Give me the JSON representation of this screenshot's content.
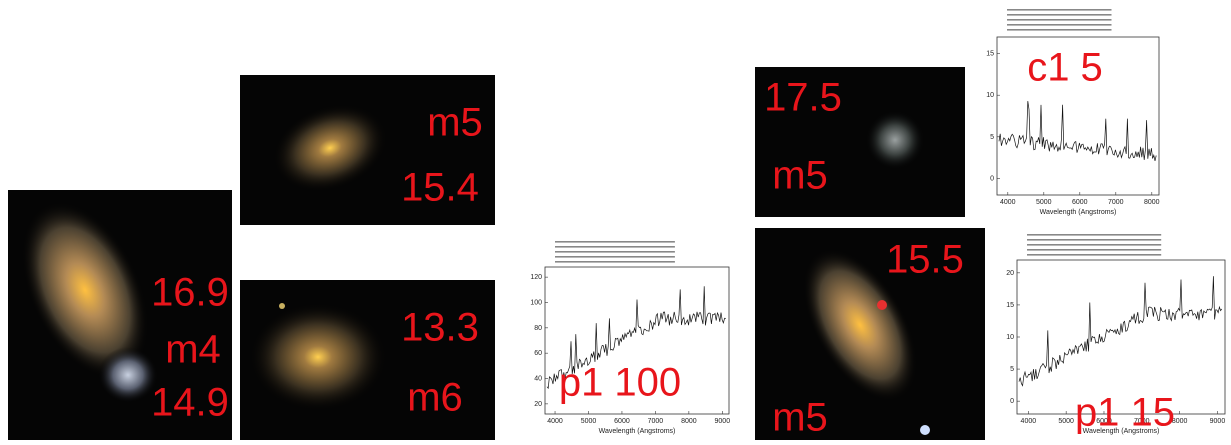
{
  "panels": [
    {
      "labels": [
        "16.9",
        "m4",
        "14.9"
      ]
    },
    {
      "labels": [
        "m5",
        "15.4"
      ]
    },
    {
      "labels": [
        "13.3",
        "m6"
      ]
    },
    {
      "labels": [
        "17.5",
        "m5"
      ]
    },
    {
      "labels": [
        "15.5",
        "m5"
      ]
    }
  ],
  "spectra": [
    {
      "label": "p1 100",
      "x_axis_label": "Wavelength (Angstroms)",
      "xticks": [
        4000,
        5000,
        6000,
        7000,
        8000,
        9000
      ],
      "yticks": [
        20,
        40,
        60,
        80,
        100,
        120
      ]
    },
    {
      "label": "c1 5",
      "x_axis_label": "Wavelength (Angstroms)",
      "xticks": [
        4000,
        5000,
        6000,
        7000,
        8000
      ],
      "yticks": [
        0,
        5,
        10,
        15
      ]
    },
    {
      "label": "p1 15",
      "x_axis_label": "Wavelength (Angstroms)",
      "xticks": [
        4000,
        5000,
        6000,
        7000,
        8000,
        9000
      ],
      "yticks": [
        0,
        5,
        10,
        15,
        20
      ]
    }
  ]
}
